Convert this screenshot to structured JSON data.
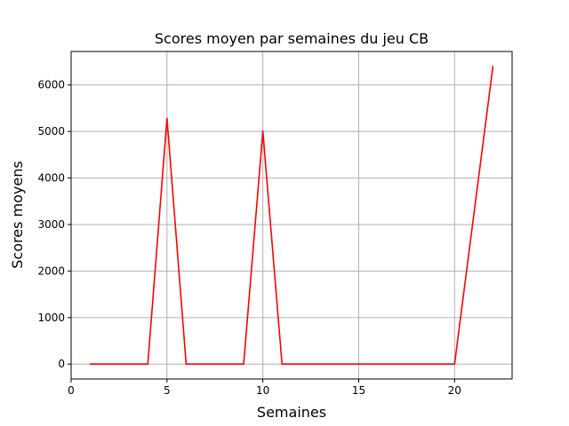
{
  "chart_data": {
    "type": "line",
    "title": "Scores moyen par semaines du jeu CB",
    "xlabel": "Semaines",
    "ylabel": "Scores moyens",
    "xlim": [
      0,
      23
    ],
    "ylim": [
      -320,
      6720
    ],
    "xticks": [
      0,
      5,
      10,
      15,
      20
    ],
    "yticks": [
      0,
      1000,
      2000,
      3000,
      4000,
      5000,
      6000
    ],
    "grid": true,
    "series": [
      {
        "color": "#ff0000",
        "x": [
          1,
          2,
          3,
          4,
          5,
          6,
          7,
          8,
          9,
          10,
          11,
          12,
          13,
          14,
          15,
          16,
          17,
          18,
          19,
          20,
          22
        ],
        "y": [
          0,
          0,
          0,
          0,
          5280,
          0,
          0,
          0,
          0,
          5010,
          0,
          0,
          0,
          0,
          0,
          0,
          0,
          0,
          0,
          0,
          6400
        ]
      }
    ]
  }
}
